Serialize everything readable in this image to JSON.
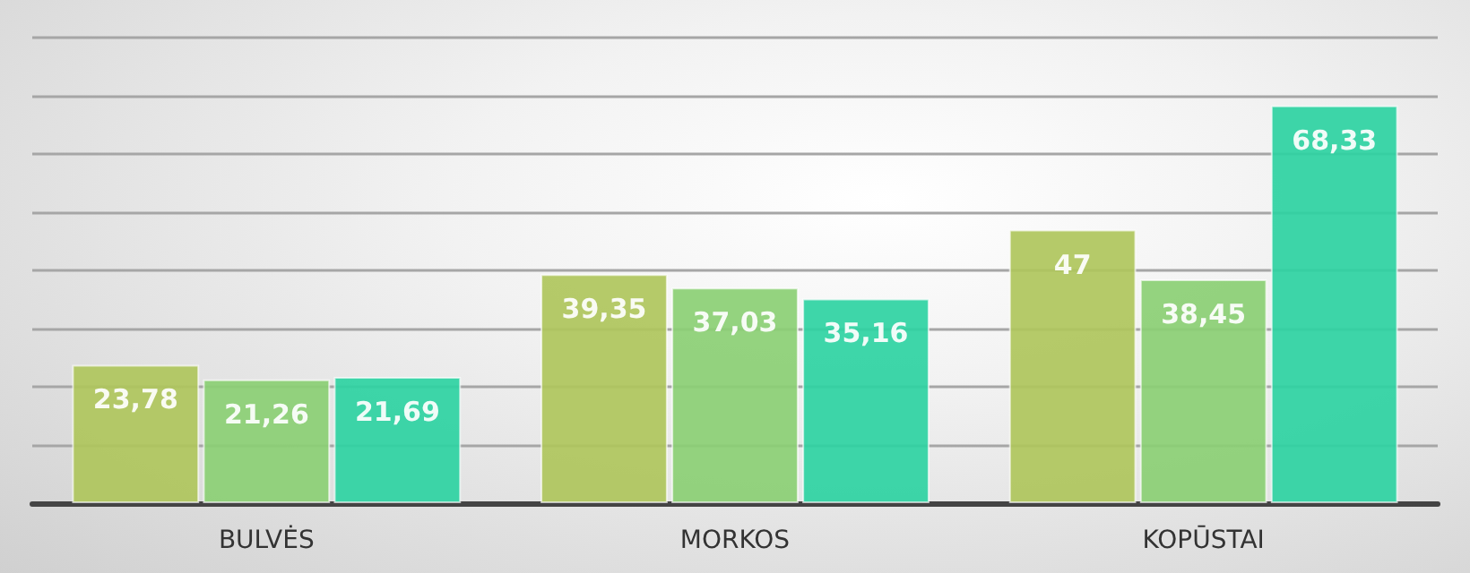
{
  "chart_data": {
    "type": "bar",
    "categories": [
      "BULVĖS",
      "MORKOS",
      "KOPŪSTAI"
    ],
    "series": [
      {
        "color": "#afc65c",
        "values": [
          23.78,
          39.35,
          47
        ],
        "value_labels": [
          "23,78",
          "39,35",
          "47"
        ]
      },
      {
        "color": "#8bcf74",
        "values": [
          21.26,
          37.03,
          38.45
        ],
        "value_labels": [
          "21,26",
          "37,03",
          "38,45"
        ]
      },
      {
        "color": "#2ed3a2",
        "values": [
          21.69,
          35.16,
          68.33
        ],
        "value_labels": [
          "21,69",
          "35,16",
          "68,33"
        ]
      }
    ],
    "ylim": [
      0,
      80
    ],
    "grid": "y",
    "tick_labels": "x"
  }
}
